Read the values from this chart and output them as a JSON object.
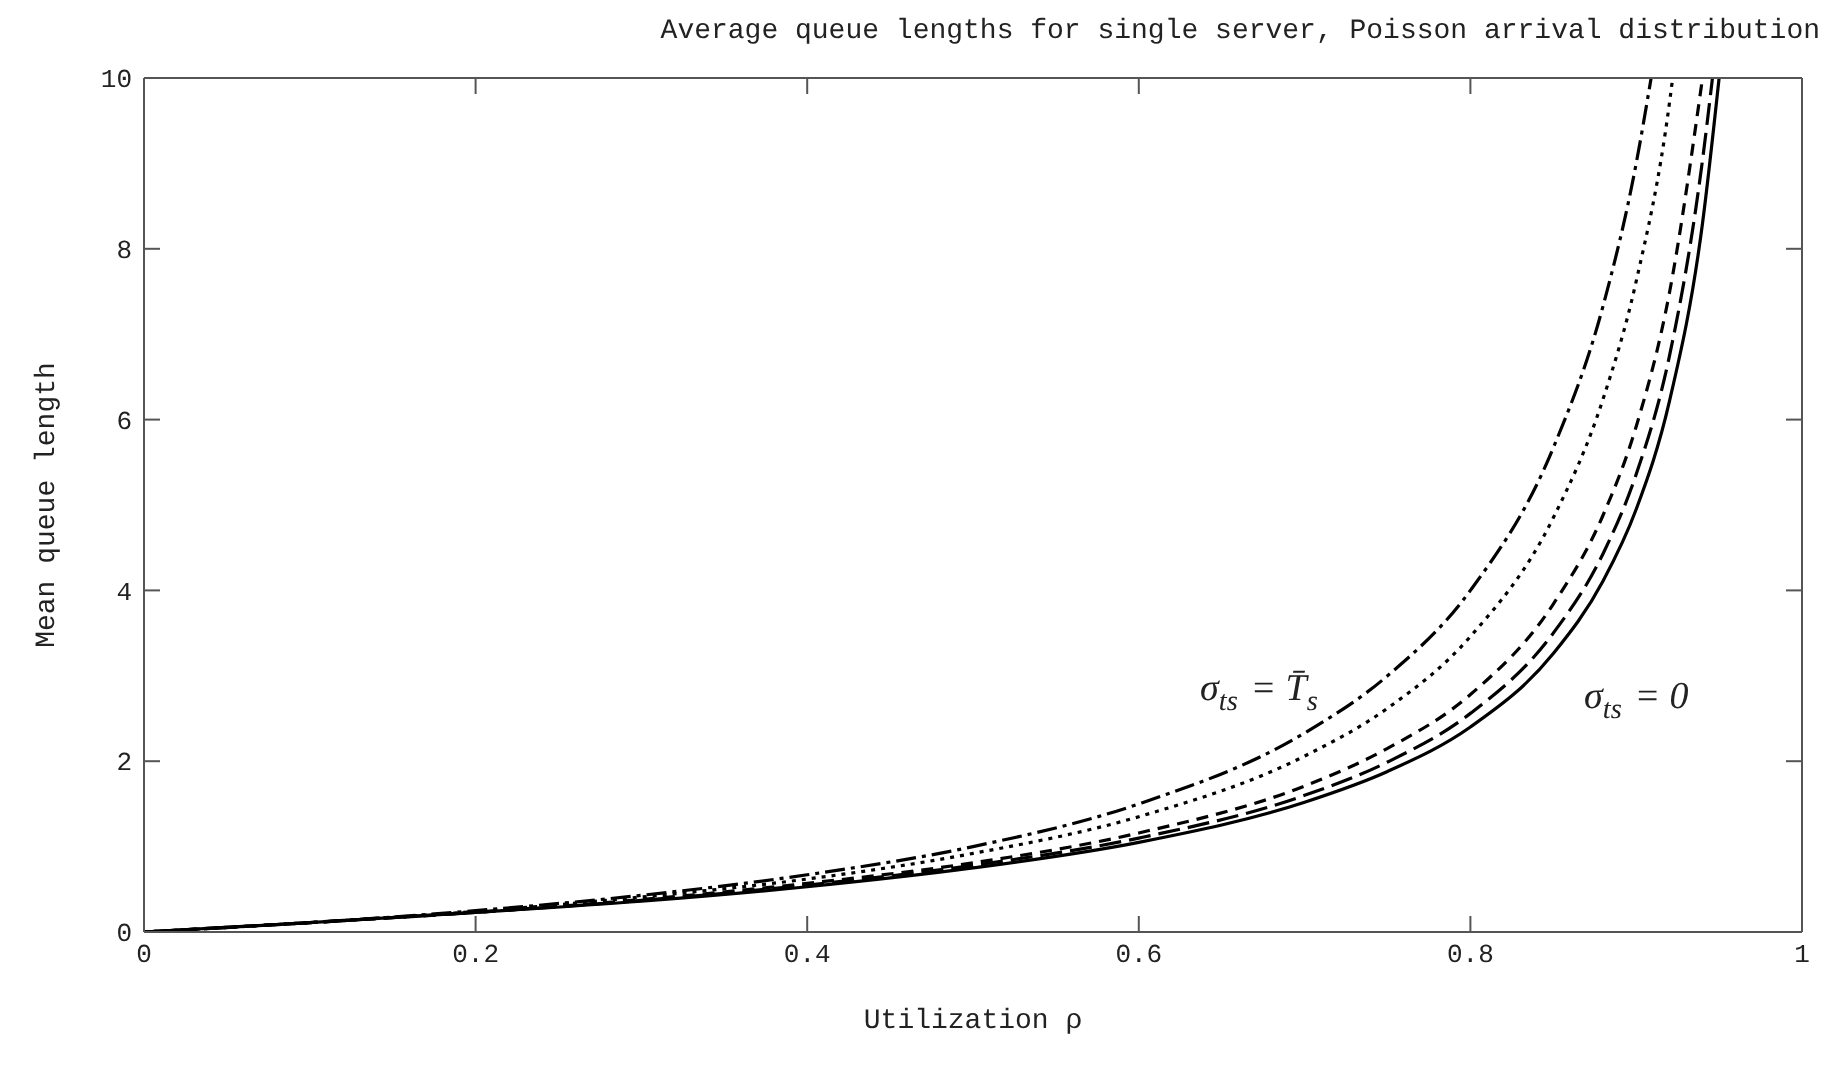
{
  "chart_data": {
    "type": "line",
    "title": "Average queue lengths for single server, Poisson arrival distribution",
    "xlabel": "Utilization ρ",
    "ylabel": "Mean queue length",
    "xlim": [
      0,
      1
    ],
    "xticks": [
      0,
      0.2,
      0.4,
      0.6,
      0.8,
      1
    ],
    "ylim": [
      0,
      10
    ],
    "yticks": [
      0,
      2,
      4,
      6,
      8,
      10
    ],
    "marker": "none",
    "series": [
      {
        "color": "#000000",
        "line_style": "solid",
        "x": [
          0,
          0.1,
          0.2,
          0.3,
          0.4,
          0.5,
          0.6,
          0.7,
          0.75,
          0.8,
          0.85,
          0.88,
          0.9,
          0.92,
          0.94,
          0.95
        ],
        "values": [
          0,
          0.11,
          0.23,
          0.36,
          0.53,
          0.75,
          1.05,
          1.52,
          1.88,
          2.4,
          3.26,
          4.11,
          4.95,
          6.21,
          8.3,
          10
        ]
      },
      {
        "color": "#000000",
        "line_style": "longdash",
        "x": [
          0,
          0.1,
          0.2,
          0.3,
          0.4,
          0.5,
          0.6,
          0.7,
          0.75,
          0.8,
          0.85,
          0.88,
          0.9,
          0.92,
          0.94,
          0.946
        ],
        "values": [
          0,
          0.11,
          0.23,
          0.37,
          0.55,
          0.78,
          1.1,
          1.6,
          1.99,
          2.56,
          3.5,
          4.43,
          5.36,
          6.74,
          9.04,
          10
        ]
      },
      {
        "color": "#000000",
        "line_style": "dashed",
        "x": [
          0,
          0.1,
          0.2,
          0.3,
          0.4,
          0.5,
          0.6,
          0.7,
          0.75,
          0.8,
          0.85,
          0.88,
          0.9,
          0.92,
          0.94
        ],
        "values": [
          0,
          0.11,
          0.23,
          0.38,
          0.57,
          0.81,
          1.16,
          1.71,
          2.15,
          2.78,
          3.84,
          4.88,
          5.92,
          7.48,
          10
        ]
      },
      {
        "color": "#000000",
        "line_style": "dotted",
        "x": [
          0,
          0.1,
          0.2,
          0.3,
          0.4,
          0.5,
          0.6,
          0.7,
          0.75,
          0.8,
          0.85,
          0.88,
          0.9,
          0.92,
          0.922
        ],
        "values": [
          0,
          0.11,
          0.24,
          0.41,
          0.62,
          0.92,
          1.35,
          2.06,
          2.62,
          3.46,
          4.85,
          6.24,
          7.62,
          9.7,
          10
        ]
      },
      {
        "color": "#000000",
        "line_style": "dashdot",
        "x": [
          0,
          0.1,
          0.2,
          0.3,
          0.4,
          0.5,
          0.6,
          0.7,
          0.75,
          0.8,
          0.85,
          0.88,
          0.9,
          0.909
        ],
        "values": [
          0,
          0.11,
          0.25,
          0.43,
          0.67,
          1,
          1.5,
          2.33,
          3,
          4,
          5.67,
          7.33,
          9,
          10
        ]
      }
    ],
    "annotations": [
      "σ$_{ts}$ = T̄$_{s}$",
      "σ$_{ts}$ = 0"
    ]
  }
}
